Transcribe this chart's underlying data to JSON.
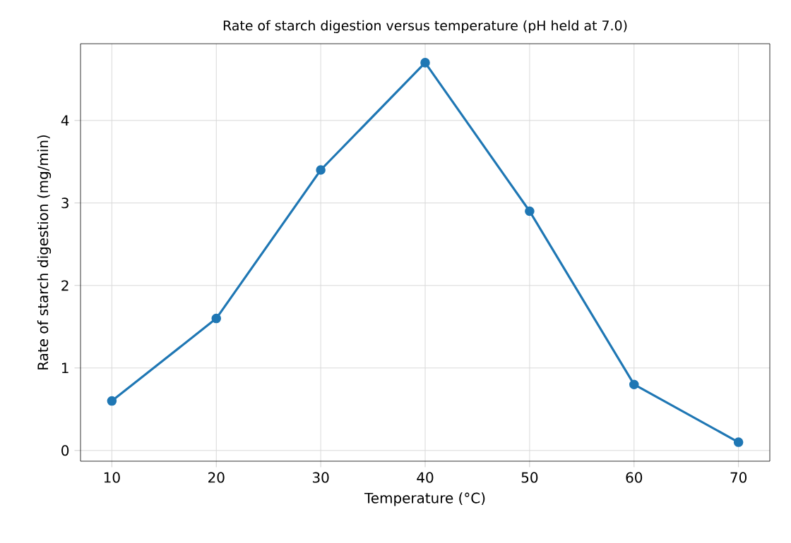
{
  "chart_data": {
    "type": "line",
    "title": "Rate of starch digestion versus temperature (pH held at 7.0)",
    "xlabel": "Temperature (°C)",
    "ylabel": "Rate of starch digestion (mg/min)",
    "x": [
      10,
      20,
      30,
      40,
      50,
      60,
      70
    ],
    "series": [
      {
        "color": "#1f77b4",
        "values": [
          0.6,
          1.6,
          3.4,
          4.7,
          2.9,
          0.8,
          0.1
        ]
      }
    ],
    "xlim": [
      7,
      73
    ],
    "ylim": [
      -0.13,
      4.93
    ],
    "xticks": [
      10,
      20,
      30,
      40,
      50,
      60,
      70
    ],
    "yticks": [
      0,
      1,
      2,
      3,
      4
    ],
    "grid": true,
    "marker": "circle",
    "line_style": "solid"
  }
}
